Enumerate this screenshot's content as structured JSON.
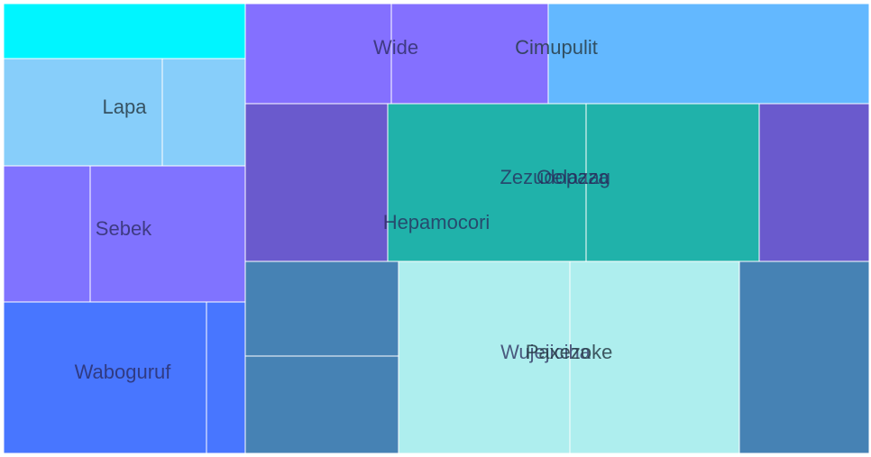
{
  "chart_data": {
    "type": "treemap",
    "title": "",
    "groups": [
      {
        "label": "",
        "color": "#00F5FF",
        "leaves": [
          ""
        ]
      },
      {
        "label": "Lapa",
        "color": "#87CEFA",
        "leaves": [
          "",
          ""
        ]
      },
      {
        "label": "Sebek",
        "color": "#8073FF",
        "leaves": [
          "",
          ""
        ]
      },
      {
        "label": "Waboguruf",
        "color": "#4876FF",
        "leaves": [
          "",
          ""
        ]
      },
      {
        "label": "Wide",
        "color": "#8470FF",
        "leaves": [
          "",
          ""
        ]
      },
      {
        "label": "Cimupulit",
        "color": "#63B8FF",
        "leaves": [
          ""
        ]
      },
      {
        "label": "Hepamocori",
        "color": "#6A5ACD",
        "leaves": [
          "",
          ""
        ]
      },
      {
        "label": "Zezudopaza",
        "color": "#20B2AA",
        "leaves": [
          ""
        ]
      },
      {
        "label": "Oelazag",
        "color": "#20B2AA",
        "leaves": [
          ""
        ]
      },
      {
        "label": "Wujejiciha",
        "color": "#4682B4",
        "leaves": [
          "",
          "",
          ""
        ]
      },
      {
        "label": "Paxezoke",
        "color": "#AEEEEE",
        "leaves": [
          "",
          ""
        ]
      }
    ]
  }
}
